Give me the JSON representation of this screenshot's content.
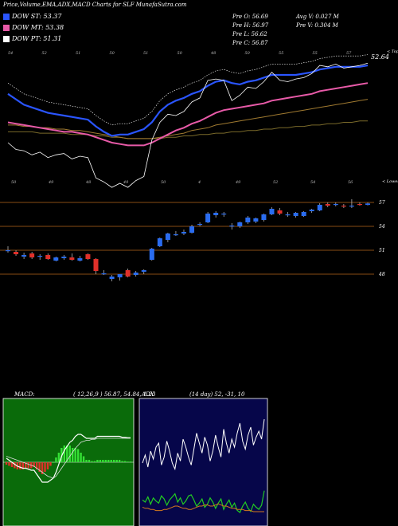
{
  "header": {
    "title": "Price,Volume,EMA,ADX,MACD Charts for SLF MunafaSutra.com",
    "legend": [
      {
        "label": "DOW ST: 53.37",
        "color": "#2a55ff"
      },
      {
        "label": "DOW MT: 53.38",
        "color": "#e85aa8"
      },
      {
        "label": "DOW PT: 51.31",
        "color": "#ffffff"
      }
    ],
    "stats": [
      "Pre O: 56.69",
      "Pre H: 56.97",
      "Pre L: 56.62",
      "Pre C: 56.87",
      "Avg V: 0.027 M",
      "Pre V: 0.304 M"
    ]
  },
  "ema_panel": {
    "top_right_label": "< Topa",
    "last_value_label": "52.64",
    "top_ticks": [
      "54",
      "52",
      "51",
      "50",
      "51",
      "50",
      "48",
      "50",
      "55",
      "55",
      "57"
    ],
    "bottom_ticks": [
      "50",
      "49",
      "48",
      "49",
      "50",
      "4",
      "49",
      "52",
      "54",
      "56"
    ],
    "bottom_right_label": "< Lowes"
  },
  "candle_panel": {
    "price_levels": [
      "57",
      "54",
      "51",
      "48"
    ]
  },
  "macd_panel": {
    "label": "MACD:",
    "params": "( 12,26,9 ) 56.87, 54.84, 1.23"
  },
  "adx_panel": {
    "label": "ADX",
    "params": "(14 day) 52, -31, 10"
  },
  "chart_data": {
    "type": "candlestick",
    "price_levels": [
      57,
      54,
      51,
      48
    ],
    "candles": [
      {
        "o": 51.0,
        "h": 51.5,
        "l": 50.7,
        "c": 51.0
      },
      {
        "o": 50.8,
        "h": 51.0,
        "l": 50.3,
        "c": 50.5
      },
      {
        "o": 50.2,
        "h": 50.7,
        "l": 49.9,
        "c": 50.4
      },
      {
        "o": 50.6,
        "h": 50.8,
        "l": 49.9,
        "c": 50.1
      },
      {
        "o": 50.2,
        "h": 50.5,
        "l": 49.8,
        "c": 50.3
      },
      {
        "o": 50.4,
        "h": 50.6,
        "l": 49.8,
        "c": 49.9
      },
      {
        "o": 49.7,
        "h": 50.2,
        "l": 49.6,
        "c": 50.1
      },
      {
        "o": 50.0,
        "h": 50.4,
        "l": 49.8,
        "c": 50.2
      },
      {
        "o": 50.1,
        "h": 50.6,
        "l": 49.7,
        "c": 49.8
      },
      {
        "o": 49.7,
        "h": 50.3,
        "l": 49.6,
        "c": 50.0
      },
      {
        "o": 50.5,
        "h": 50.6,
        "l": 49.8,
        "c": 49.9
      },
      {
        "o": 49.9,
        "h": 50.0,
        "l": 48.0,
        "c": 48.4
      },
      {
        "o": 48.1,
        "h": 48.5,
        "l": 47.9,
        "c": 48.1
      },
      {
        "o": 47.4,
        "h": 47.9,
        "l": 47.1,
        "c": 47.7
      },
      {
        "o": 47.6,
        "h": 48.0,
        "l": 47.2,
        "c": 48.0
      },
      {
        "o": 48.5,
        "h": 48.7,
        "l": 47.6,
        "c": 47.7
      },
      {
        "o": 47.9,
        "h": 48.4,
        "l": 47.7,
        "c": 48.2
      },
      {
        "o": 48.3,
        "h": 48.6,
        "l": 48.0,
        "c": 48.5
      },
      {
        "o": 49.8,
        "h": 51.3,
        "l": 49.7,
        "c": 51.2
      },
      {
        "o": 51.5,
        "h": 52.6,
        "l": 51.4,
        "c": 52.5
      },
      {
        "o": 52.3,
        "h": 53.2,
        "l": 52.0,
        "c": 53.1
      },
      {
        "o": 53.0,
        "h": 53.4,
        "l": 52.8,
        "c": 53.0
      },
      {
        "o": 53.1,
        "h": 53.6,
        "l": 52.9,
        "c": 53.3
      },
      {
        "o": 53.2,
        "h": 54.2,
        "l": 53.1,
        "c": 54.0
      },
      {
        "o": 54.3,
        "h": 54.5,
        "l": 54.0,
        "c": 54.3
      },
      {
        "o": 54.5,
        "h": 55.8,
        "l": 54.4,
        "c": 55.6
      },
      {
        "o": 55.4,
        "h": 55.9,
        "l": 55.1,
        "c": 55.7
      },
      {
        "o": 55.5,
        "h": 55.8,
        "l": 55.2,
        "c": 55.6
      },
      {
        "o": 54.1,
        "h": 54.4,
        "l": 53.6,
        "c": 54.1
      },
      {
        "o": 54.0,
        "h": 54.6,
        "l": 53.8,
        "c": 54.5
      },
      {
        "o": 54.5,
        "h": 55.3,
        "l": 54.3,
        "c": 55.1
      },
      {
        "o": 54.6,
        "h": 55.1,
        "l": 54.4,
        "c": 55.0
      },
      {
        "o": 54.8,
        "h": 55.6,
        "l": 54.6,
        "c": 55.5
      },
      {
        "o": 55.5,
        "h": 56.4,
        "l": 55.4,
        "c": 56.2
      },
      {
        "o": 56.0,
        "h": 56.3,
        "l": 55.4,
        "c": 55.6
      },
      {
        "o": 55.4,
        "h": 55.8,
        "l": 55.2,
        "c": 55.5
      },
      {
        "o": 55.3,
        "h": 55.8,
        "l": 55.1,
        "c": 55.7
      },
      {
        "o": 55.3,
        "h": 55.9,
        "l": 55.2,
        "c": 55.8
      },
      {
        "o": 55.9,
        "h": 56.2,
        "l": 55.7,
        "c": 56.1
      },
      {
        "o": 56.0,
        "h": 56.9,
        "l": 55.9,
        "c": 56.7
      },
      {
        "o": 56.8,
        "h": 57.0,
        "l": 56.4,
        "c": 56.6
      },
      {
        "o": 56.7,
        "h": 57.0,
        "l": 56.5,
        "c": 56.8
      },
      {
        "o": 56.6,
        "h": 56.8,
        "l": 56.3,
        "c": 56.5
      },
      {
        "o": 56.5,
        "h": 57.4,
        "l": 56.3,
        "c": 56.6
      },
      {
        "o": 56.8,
        "h": 57.0,
        "l": 56.6,
        "c": 56.7
      },
      {
        "o": 56.69,
        "h": 56.97,
        "l": 56.62,
        "c": 56.87
      }
    ],
    "ema_close": [
      54.6,
      54.2,
      53.8,
      53.6,
      53.4,
      53.2,
      53.1,
      53.0,
      52.9,
      52.8,
      52.7,
      52.2,
      51.8,
      51.5,
      51.6,
      51.6,
      51.8,
      52.0,
      52.5,
      53.3,
      53.8,
      54.1,
      54.3,
      54.6,
      54.8,
      55.2,
      55.5,
      55.6,
      55.4,
      55.3,
      55.5,
      55.6,
      55.8,
      56.0,
      56.0,
      56.0,
      56.0,
      56.1,
      56.2,
      56.4,
      56.5,
      56.6,
      56.6,
      56.6,
      56.6,
      56.7
    ],
    "ema_fast": [
      52.5,
      52.4,
      52.3,
      52.2,
      52.1,
      52.0,
      51.9,
      51.8,
      51.8,
      51.7,
      51.6,
      51.4,
      51.2,
      51.0,
      50.9,
      50.8,
      50.8,
      50.8,
      51.0,
      51.3,
      51.6,
      51.9,
      52.1,
      52.4,
      52.6,
      52.9,
      53.2,
      53.4,
      53.5,
      53.6,
      53.7,
      53.8,
      53.9,
      54.1,
      54.2,
      54.3,
      54.4,
      54.5,
      54.6,
      54.8,
      54.9,
      55.0,
      55.1,
      55.2,
      55.3,
      55.4
    ],
    "ema_mid": [
      52.3,
      52.3,
      52.2,
      52.2,
      52.1,
      52.1,
      52.0,
      52.0,
      51.9,
      51.9,
      51.8,
      51.7,
      51.6,
      51.5,
      51.4,
      51.3,
      51.3,
      51.3,
      51.3,
      51.4,
      51.5,
      51.6,
      51.7,
      51.9,
      52.0,
      52.1,
      52.3,
      52.4,
      52.5,
      52.6,
      52.7,
      52.8,
      52.9,
      53.0,
      53.1,
      53.2,
      53.3,
      53.4,
      53.5,
      53.6,
      53.7,
      53.8,
      53.9,
      54.0,
      54.1,
      54.2
    ],
    "ema_slow": [
      51.8,
      51.8,
      51.8,
      51.8,
      51.7,
      51.7,
      51.7,
      51.7,
      51.6,
      51.6,
      51.6,
      51.5,
      51.5,
      51.4,
      51.4,
      51.3,
      51.3,
      51.3,
      51.3,
      51.3,
      51.4,
      51.4,
      51.5,
      51.5,
      51.6,
      51.6,
      51.7,
      51.7,
      51.8,
      51.8,
      51.9,
      51.9,
      52.0,
      52.0,
      52.1,
      52.1,
      52.2,
      52.2,
      52.3,
      52.3,
      52.4,
      52.4,
      52.5,
      52.5,
      52.6,
      52.6
    ],
    "macd": [
      0.2,
      0.1,
      0.0,
      -0.1,
      -0.2,
      -0.25,
      -0.3,
      -0.3,
      -0.35,
      -0.4,
      -0.4,
      -0.6,
      -0.8,
      -1.0,
      -1.0,
      -1.0,
      -0.9,
      -0.8,
      -0.5,
      -0.1,
      0.3,
      0.6,
      0.8,
      1.0,
      1.1,
      1.3,
      1.4,
      1.4,
      1.3,
      1.2,
      1.2,
      1.2,
      1.2,
      1.3,
      1.3,
      1.3,
      1.3,
      1.3,
      1.3,
      1.3,
      1.3,
      1.3,
      1.25,
      1.25,
      1.23,
      1.23
    ],
    "signal": [
      0.3,
      0.25,
      0.2,
      0.15,
      0.1,
      0.05,
      0.0,
      -0.05,
      -0.1,
      -0.15,
      -0.2,
      -0.3,
      -0.4,
      -0.5,
      -0.6,
      -0.7,
      -0.75,
      -0.8,
      -0.7,
      -0.5,
      -0.3,
      -0.1,
      0.1,
      0.3,
      0.5,
      0.7,
      0.85,
      1.0,
      1.05,
      1.1,
      1.1,
      1.15,
      1.15,
      1.2,
      1.2,
      1.2,
      1.2,
      1.2,
      1.2,
      1.2,
      1.2,
      1.2,
      1.2,
      1.2,
      1.2,
      1.2
    ],
    "adx_di_plus": [
      30,
      34,
      28,
      36,
      32,
      38,
      40,
      29,
      33,
      41,
      36,
      30,
      27,
      35,
      31,
      42,
      38,
      33,
      29,
      37,
      45,
      40,
      35,
      43,
      39,
      31,
      36,
      44,
      38,
      33,
      47,
      40,
      35,
      42,
      38,
      45,
      50,
      41,
      37,
      44,
      48,
      39,
      43,
      46,
      42,
      52
    ],
    "adx_di_minus": [
      22,
      20,
      25,
      18,
      24,
      21,
      19,
      26,
      23,
      17,
      22,
      25,
      28,
      20,
      24,
      18,
      21,
      26,
      27,
      22,
      16,
      19,
      23,
      15,
      18,
      24,
      20,
      14,
      19,
      23,
      13,
      18,
      22,
      15,
      19,
      12,
      10,
      16,
      20,
      14,
      11,
      18,
      15,
      13,
      17,
      31
    ],
    "adx": [
      14,
      13,
      13,
      12,
      12,
      11,
      11,
      11,
      12,
      12,
      13,
      14,
      15,
      15,
      14,
      13,
      13,
      12,
      12,
      13,
      14,
      15,
      15,
      16,
      16,
      15,
      15,
      16,
      17,
      16,
      15,
      15,
      14,
      13,
      13,
      12,
      12,
      12,
      11,
      11,
      11,
      10,
      10,
      10,
      10,
      10
    ]
  }
}
